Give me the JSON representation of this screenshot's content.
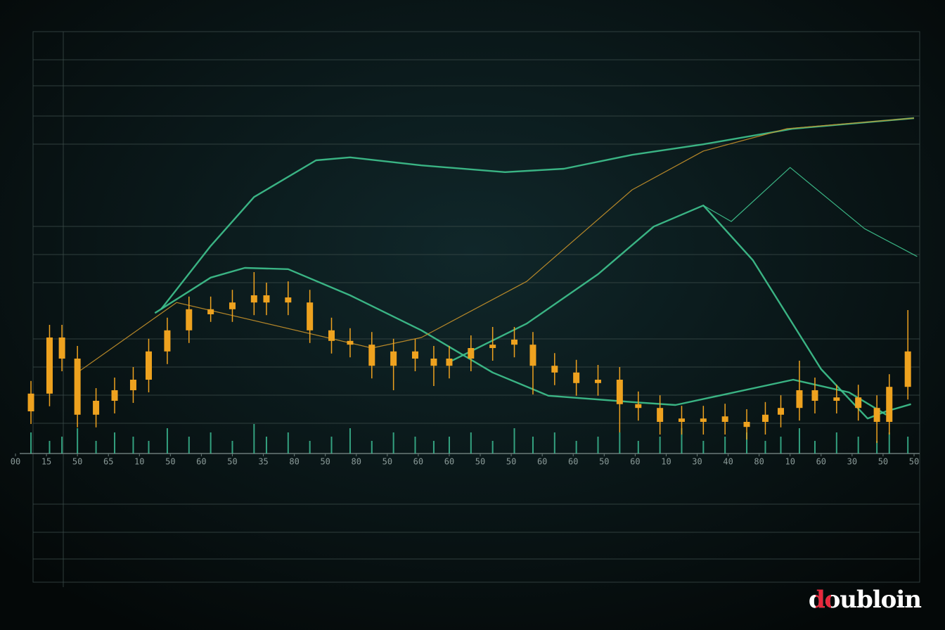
{
  "chart_data": {
    "type": "candlestick",
    "xlim": [
      0,
      29
    ],
    "ylim": [
      0,
      100
    ],
    "xticks": [
      {
        "value": 0,
        "label": "00"
      },
      {
        "value": 1,
        "label": "15"
      },
      {
        "value": 2,
        "label": "50"
      },
      {
        "value": 3,
        "label": "65"
      },
      {
        "value": 4,
        "label": "10"
      },
      {
        "value": 5,
        "label": "50"
      },
      {
        "value": 6,
        "label": "60"
      },
      {
        "value": 7,
        "label": "50"
      },
      {
        "value": 8,
        "label": "35"
      },
      {
        "value": 9,
        "label": "80"
      },
      {
        "value": 10,
        "label": "50"
      },
      {
        "value": 11,
        "label": "80"
      },
      {
        "value": 12,
        "label": "50"
      },
      {
        "value": 13,
        "label": "60"
      },
      {
        "value": 14,
        "label": "60"
      },
      {
        "value": 15,
        "label": "50"
      },
      {
        "value": 16,
        "label": "50"
      },
      {
        "value": 17,
        "label": "60"
      },
      {
        "value": 18,
        "label": "60"
      },
      {
        "value": 19,
        "label": "50"
      },
      {
        "value": 20,
        "label": "60"
      },
      {
        "value": 21,
        "label": "10"
      },
      {
        "value": 22,
        "label": "30"
      },
      {
        "value": 23,
        "label": "40"
      },
      {
        "value": 24,
        "label": "80"
      },
      {
        "value": 25,
        "label": "10"
      },
      {
        "value": 26,
        "label": "60"
      },
      {
        "value": 27,
        "label": "30"
      },
      {
        "value": 28,
        "label": "50"
      },
      {
        "value": 29,
        "label": "50"
      }
    ],
    "candle_color": "#eea21f",
    "volume_color": "#3fc49a",
    "x": [
      0.5,
      1.1,
      1.5,
      2.0,
      2.6,
      3.2,
      3.8,
      4.3,
      4.9,
      5.6,
      6.3,
      7.0,
      7.7,
      8.1,
      8.8,
      9.5,
      10.2,
      10.8,
      11.5,
      12.2,
      12.9,
      13.5,
      14.0,
      14.7,
      15.4,
      16.1,
      16.7,
      17.4,
      18.1,
      18.8,
      19.5,
      20.1,
      20.8,
      21.5,
      22.2,
      22.9,
      23.6,
      24.2,
      24.7,
      25.3,
      25.8,
      26.5,
      27.2,
      27.8,
      28.2,
      28.8
    ],
    "open": [
      10,
      14.2,
      27.5,
      22.5,
      9.2,
      12.5,
      15,
      17.5,
      24.2,
      29.2,
      33,
      34.2,
      35.8,
      37.5,
      37,
      35.8,
      29.2,
      26.7,
      25.8,
      20.8,
      24.2,
      22.5,
      20.8,
      22.5,
      25,
      27,
      25.8,
      20.8,
      19.2,
      16.7,
      17.5,
      11.7,
      10.8,
      7.5,
      8.3,
      8.8,
      6.3,
      7.5,
      9.2,
      10.8,
      15,
      12.5,
      13.3,
      10.8,
      7.5,
      15.8
    ],
    "close": [
      14.2,
      27.5,
      22.5,
      9.2,
      12.5,
      15,
      17.5,
      24.2,
      29.2,
      34.2,
      34.2,
      35.8,
      37.5,
      35.8,
      35.8,
      29.2,
      26.7,
      25.8,
      20.8,
      24.2,
      22.5,
      20.8,
      22.5,
      25,
      25.8,
      25.8,
      20.8,
      19.2,
      16.7,
      17.5,
      11.7,
      10.8,
      7.5,
      8.3,
      7.5,
      7.5,
      7.5,
      9.2,
      10.8,
      15,
      12.5,
      13.3,
      10.8,
      7.5,
      15.8,
      24.2
    ],
    "high": [
      17.2,
      30.5,
      30.5,
      25.5,
      15.5,
      18,
      20.5,
      27.2,
      32.2,
      37.2,
      37.2,
      38.8,
      43,
      40.5,
      40.8,
      38.8,
      32.2,
      29.7,
      28.8,
      27.2,
      27.2,
      25.5,
      25.5,
      28,
      30,
      30,
      28.8,
      23.8,
      22.2,
      21,
      20.5,
      14.7,
      13.8,
      11.3,
      11.3,
      11.8,
      10.5,
      12.2,
      13.8,
      22,
      18,
      16.3,
      16.3,
      13.8,
      18.8,
      34
    ],
    "low": [
      7,
      11.2,
      19.5,
      6.2,
      6.2,
      9.5,
      12,
      14.5,
      21.2,
      26.2,
      31.2,
      31.2,
      32.8,
      32.8,
      32.8,
      26.2,
      23.7,
      22.8,
      17.8,
      15,
      19.5,
      16,
      17.8,
      19.5,
      22,
      22.8,
      14,
      16.2,
      13.7,
      13.7,
      5,
      7.8,
      4.5,
      4.5,
      4.5,
      4.5,
      3.3,
      4.5,
      6.2,
      7.8,
      9.5,
      9.5,
      7.8,
      2.5,
      4.5,
      12.8
    ],
    "volume": [
      5,
      3,
      4,
      6,
      3,
      5,
      4,
      3,
      6,
      4,
      5,
      3,
      7,
      4,
      5,
      3,
      4,
      6,
      3,
      5,
      4,
      3,
      4,
      5,
      3,
      6,
      4,
      5,
      3,
      4,
      5,
      3,
      4,
      6,
      3,
      4,
      5,
      3,
      4,
      6,
      3,
      5,
      4,
      3,
      5,
      4
    ],
    "series": [
      {
        "color": "#3fc48f",
        "x": [
          4.7,
          6.3,
          7.7,
          9.7,
          10.8,
          13.1,
          15.8,
          17.7,
          19.9,
          22.2,
          25.1,
          29.0
        ],
        "values": [
          34.2,
          49.2,
          60.8,
          69.5,
          70.2,
          68.3,
          66.7,
          67.5,
          70.8,
          73.3,
          77.0,
          79.5
        ]
      },
      {
        "color": "#3fc48f",
        "x": [
          4.5,
          6.3,
          7.4,
          8.8,
          10.8,
          13.1,
          15.4,
          17.2,
          19.9,
          21.3,
          25.1,
          26.9,
          28.1
        ],
        "values": [
          33.3,
          41.7,
          44.0,
          43.7,
          37.5,
          29.2,
          19.2,
          13.7,
          12.2,
          11.5,
          17.5,
          14.5,
          9.2
        ]
      },
      {
        "color": "#3fc48f",
        "x": [
          14.0,
          16.5,
          18.8,
          20.6,
          22.2,
          23.8,
          26.0,
          27.5,
          28.1,
          28.9
        ],
        "values": [
          21.7,
          30.8,
          42.5,
          53.8,
          58.8,
          45.8,
          20.0,
          8.3,
          10.0,
          11.7
        ]
      },
      {
        "color": "#3fc48f",
        "x": [
          22.2,
          23.1,
          25.0,
          27.4,
          29.1
        ],
        "values": [
          58.8,
          55.0,
          67.8,
          53.3,
          46.7
        ]
      },
      {
        "color": "#c8922a",
        "x": [
          2.0,
          5.2,
          11.5,
          13.1,
          16.5,
          19.9,
          22.2,
          24.9,
          29.0
        ],
        "values": [
          19.2,
          35.8,
          25.0,
          27.5,
          40.8,
          62.5,
          71.7,
          77.0,
          79.5
        ]
      }
    ]
  },
  "watermark": "doubloin"
}
